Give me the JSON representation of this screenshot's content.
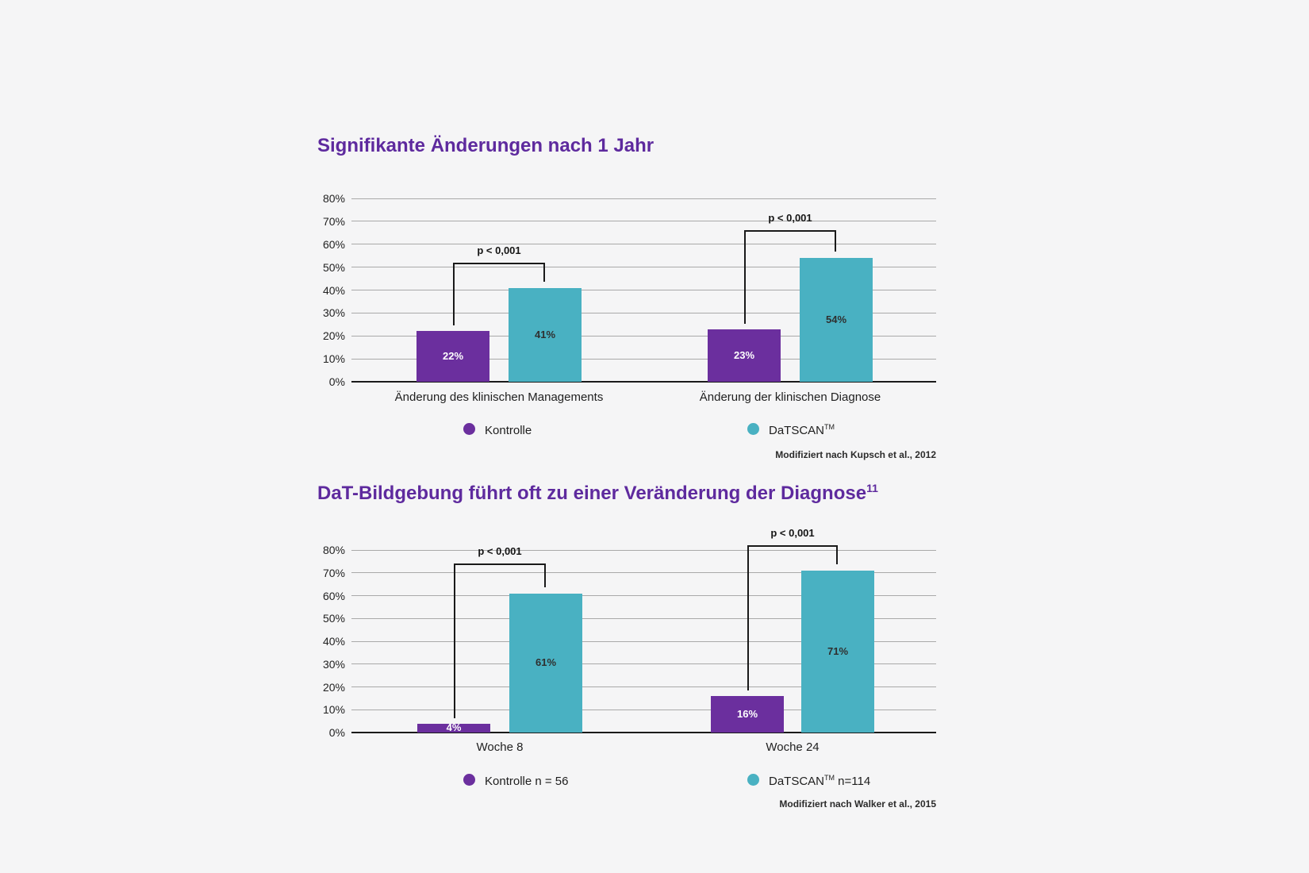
{
  "page": {
    "background": "#f5f5f6"
  },
  "colors": {
    "title_purple": "#5e2a9e",
    "bar_purple": "#6b2f9e",
    "bar_teal": "#49b1c2",
    "gridline": "#a9a9a9",
    "axis": "#1a1a1a",
    "value_on_purple": "#ffffff",
    "value_on_teal": "#2f2f2f"
  },
  "chart_data": [
    {
      "type": "bar",
      "title": "Signifikante Änderungen nach 1 Jahr",
      "title_sup": "",
      "categories": [
        "Änderung des klinischen Managements",
        "Änderung der klinischen Diagnose"
      ],
      "series": [
        {
          "name": "Kontrolle",
          "values": [
            22,
            23
          ],
          "color": "#6b2f9e",
          "value_label_color": "#ffffff"
        },
        {
          "name": "DaTSCAN™",
          "values": [
            41,
            54
          ],
          "color": "#49b1c2",
          "value_label_color": "#2f2f2f"
        }
      ],
      "value_suffix": "%",
      "ylim": [
        0,
        80
      ],
      "yticks": [
        "0%",
        "10%",
        "20%",
        "30%",
        "40%",
        "50%",
        "60%",
        "70%",
        "80%"
      ],
      "grid": true,
      "legend_position": "bottom",
      "annotations": [
        {
          "group": 0,
          "label": "p < 0,001",
          "level_pct": 52
        },
        {
          "group": 1,
          "label": "p < 0,001",
          "level_pct": 66
        }
      ],
      "legend": [
        {
          "prefix": "Kontrolle",
          "sup": "",
          "suffix": ""
        },
        {
          "prefix": "DaTSCAN",
          "sup": "TM",
          "suffix": ""
        }
      ],
      "source": "Modifiziert nach Kupsch et al., 2012"
    },
    {
      "type": "bar",
      "title": "DaT-Bildgebung führt oft zu einer Veränderung der Diagnose",
      "title_sup": "11",
      "categories": [
        "Woche 8",
        "Woche 24"
      ],
      "series": [
        {
          "name": "Kontrolle n = 56",
          "values": [
            4,
            16
          ],
          "color": "#6b2f9e",
          "value_label_color": "#ffffff"
        },
        {
          "name": "DaTSCAN™ n=114",
          "values": [
            61,
            71
          ],
          "color": "#49b1c2",
          "value_label_color": "#2f2f2f"
        }
      ],
      "value_suffix": "%",
      "ylim": [
        0,
        80
      ],
      "yticks": [
        "0%",
        "10%",
        "20%",
        "30%",
        "40%",
        "50%",
        "60%",
        "70%",
        "80%"
      ],
      "grid": true,
      "legend_position": "bottom",
      "annotations": [
        {
          "group": 0,
          "label": "p < 0,001",
          "level_pct": 74
        },
        {
          "group": 1,
          "label": "p < 0,001",
          "level_pct": 82
        }
      ],
      "legend": [
        {
          "prefix": "Kontrolle n = 56",
          "sup": "",
          "suffix": ""
        },
        {
          "prefix": "DaTSCAN",
          "sup": "TM",
          "suffix": " n=114"
        }
      ],
      "source": "Modifiziert nach Walker et al., 2015"
    }
  ]
}
